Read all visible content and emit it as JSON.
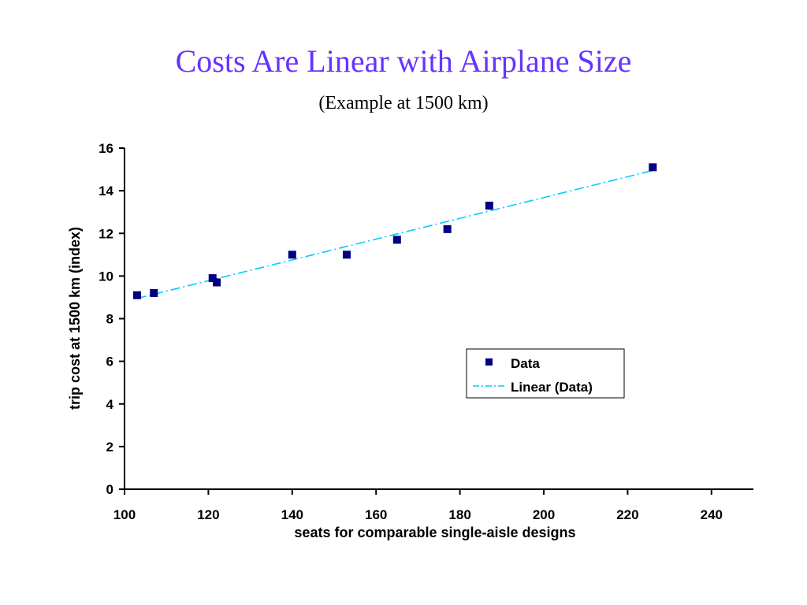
{
  "slide": {
    "title": "Costs Are Linear with Airplane Size",
    "subtitle": "(Example at 1500 km)"
  },
  "chart_data": {
    "type": "scatter",
    "xlabel": "seats for comparable single-aisle designs",
    "ylabel": "trip cost at 1500 km (index)",
    "xlim": [
      100,
      250
    ],
    "ylim": [
      0,
      16
    ],
    "x_ticks": [
      100,
      120,
      140,
      160,
      180,
      200,
      220,
      240
    ],
    "y_ticks": [
      0,
      2,
      4,
      6,
      8,
      10,
      12,
      14,
      16
    ],
    "grid": false,
    "legend_position": "right",
    "colors": {
      "data": "#000080",
      "trend": "#00ccff"
    },
    "series": [
      {
        "name": "Data",
        "marker": "square",
        "x": [
          103,
          107,
          121,
          122,
          140,
          153,
          165,
          177,
          187,
          226
        ],
        "y": [
          9.1,
          9.2,
          9.9,
          9.7,
          11.0,
          11.0,
          11.7,
          12.2,
          13.3,
          15.1
        ]
      },
      {
        "name": "Linear (Data)",
        "style": "dash-dot",
        "x": [
          103,
          226
        ],
        "y": [
          8.95,
          14.95
        ]
      }
    ]
  }
}
